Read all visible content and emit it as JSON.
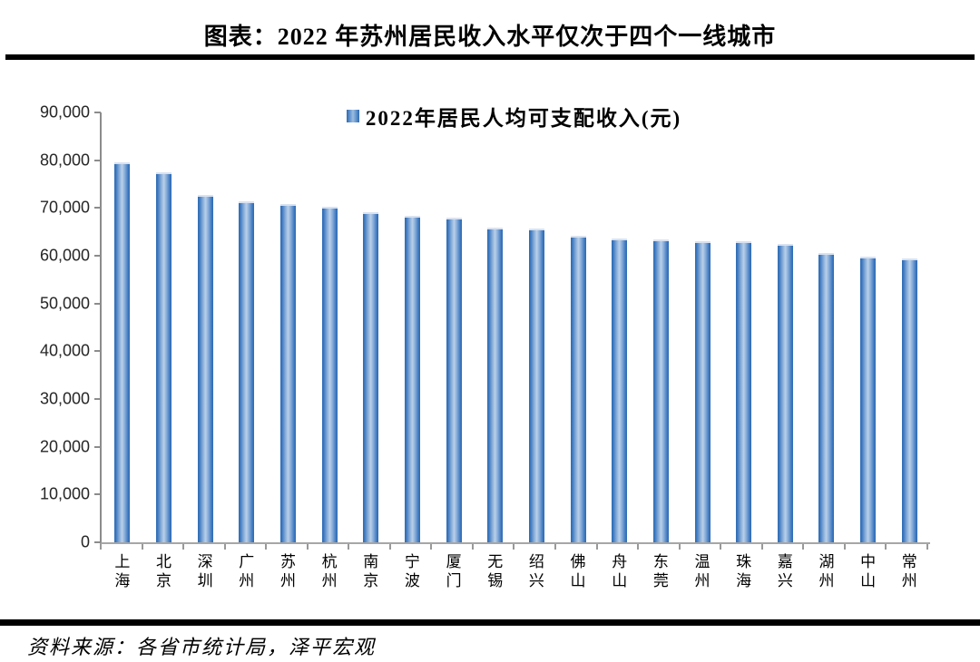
{
  "title": "图表：2022 年苏州居民收入水平仅次于四个一线城市",
  "source_note": "资料来源：各省市统计局，泽平宏观",
  "colors": {
    "bar_edge": "#2e6bb2",
    "bar_center": "#bad0ea",
    "axis_line": "#8c8c8c",
    "divider_rule": "#000000"
  },
  "chart_data": {
    "type": "bar",
    "title": "",
    "legend": [
      "2022年居民人均可支配收入(元)"
    ],
    "legend_position": "top-center",
    "legend_label": "2022年居民人均可支配收入(元)",
    "categories": [
      "上海",
      "北京",
      "深圳",
      "广州",
      "苏州",
      "杭州",
      "南京",
      "宁波",
      "厦门",
      "无锡",
      "绍兴",
      "佛山",
      "舟山",
      "东莞",
      "温州",
      "珠海",
      "嘉兴",
      "湖州",
      "中山",
      "常州"
    ],
    "values": [
      79610,
      77415,
      72718,
      71370,
      70819,
      70281,
      69039,
      68348,
      67999,
      65823,
      65760,
      64205,
      63689,
      63514,
      63050,
      62991,
      62401,
      60507,
      59835,
      59514
    ],
    "xlabel": "",
    "ylabel": "",
    "ylim": [
      0,
      90000
    ],
    "ytick_interval": 10000,
    "ytick_labels": [
      "0",
      "10,000",
      "20,000",
      "30,000",
      "40,000",
      "50,000",
      "60,000",
      "70,000",
      "80,000",
      "90,000"
    ],
    "grid": false
  }
}
